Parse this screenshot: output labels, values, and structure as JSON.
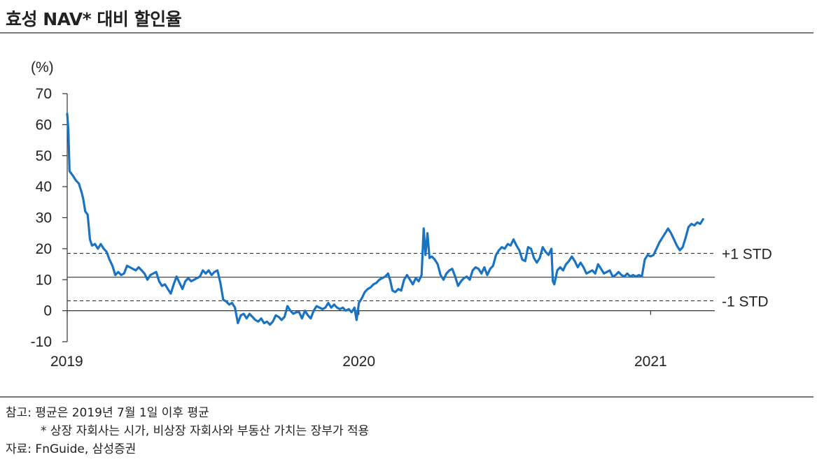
{
  "title": "효성 NAV* 대비 할인율",
  "chart_data": {
    "type": "line",
    "unit_label": "(%)",
    "ylim": [
      -10,
      70
    ],
    "y_ticks": [
      70,
      60,
      50,
      40,
      30,
      20,
      10,
      0,
      -10
    ],
    "x_tick_labels": [
      "2019",
      "2020",
      "2021"
    ],
    "x_ticks": [
      2019.0,
      2020.0,
      2021.0
    ],
    "xlim": [
      2019.0,
      2021.22
    ],
    "reference_lines": [
      {
        "label": "+1 STD",
        "value": 18.5,
        "style": "dashed"
      },
      {
        "label": "",
        "value": 10.8,
        "style": "solid"
      },
      {
        "label": "-1 STD",
        "value": 3.2,
        "style": "dashed"
      }
    ],
    "series": [
      {
        "color": "#1a73c2",
        "points": [
          [
            2019.0,
            63.5
          ],
          [
            2019.004,
            58.0
          ],
          [
            2019.008,
            45.0
          ],
          [
            2019.02,
            43.5
          ],
          [
            2019.03,
            42.0
          ],
          [
            2019.04,
            41.0
          ],
          [
            2019.05,
            38.0
          ],
          [
            2019.055,
            36.0
          ],
          [
            2019.062,
            32.0
          ],
          [
            2019.07,
            31.0
          ],
          [
            2019.078,
            23.0
          ],
          [
            2019.085,
            21.0
          ],
          [
            2019.095,
            21.5
          ],
          [
            2019.105,
            20.0
          ],
          [
            2019.115,
            21.5
          ],
          [
            2019.125,
            20.0
          ],
          [
            2019.135,
            19.0
          ],
          [
            2019.145,
            16.5
          ],
          [
            2019.155,
            14.5
          ],
          [
            2019.165,
            11.5
          ],
          [
            2019.175,
            12.5
          ],
          [
            2019.185,
            11.5
          ],
          [
            2019.195,
            12.0
          ],
          [
            2019.205,
            14.5
          ],
          [
            2019.215,
            14.0
          ],
          [
            2019.225,
            13.5
          ],
          [
            2019.235,
            13.0
          ],
          [
            2019.245,
            14.0
          ],
          [
            2019.255,
            13.0
          ],
          [
            2019.265,
            12.0
          ],
          [
            2019.275,
            10.0
          ],
          [
            2019.285,
            11.5
          ],
          [
            2019.295,
            12.0
          ],
          [
            2019.305,
            12.5
          ],
          [
            2019.315,
            9.5
          ],
          [
            2019.325,
            8.0
          ],
          [
            2019.335,
            8.5
          ],
          [
            2019.345,
            7.0
          ],
          [
            2019.355,
            5.5
          ],
          [
            2019.365,
            8.5
          ],
          [
            2019.375,
            11.0
          ],
          [
            2019.385,
            9.0
          ],
          [
            2019.395,
            7.0
          ],
          [
            2019.405,
            9.5
          ],
          [
            2019.415,
            10.5
          ],
          [
            2019.425,
            9.5
          ],
          [
            2019.435,
            10.0
          ],
          [
            2019.445,
            10.5
          ],
          [
            2019.455,
            11.0
          ],
          [
            2019.465,
            13.0
          ],
          [
            2019.475,
            12.0
          ],
          [
            2019.485,
            13.0
          ],
          [
            2019.495,
            11.5
          ],
          [
            2019.505,
            12.5
          ],
          [
            2019.515,
            13.0
          ],
          [
            2019.525,
            9.0
          ],
          [
            2019.535,
            3.5
          ],
          [
            2019.545,
            3.0
          ],
          [
            2019.555,
            2.0
          ],
          [
            2019.565,
            2.5
          ],
          [
            2019.575,
            1.0
          ],
          [
            2019.585,
            -4.0
          ],
          [
            2019.595,
            -1.5
          ],
          [
            2019.605,
            -1.0
          ],
          [
            2019.615,
            -2.5
          ],
          [
            2019.625,
            -1.0
          ],
          [
            2019.635,
            -2.0
          ],
          [
            2019.645,
            -3.0
          ],
          [
            2019.655,
            -3.5
          ],
          [
            2019.665,
            -2.5
          ],
          [
            2019.675,
            -4.0
          ],
          [
            2019.685,
            -3.5
          ],
          [
            2019.695,
            -4.5
          ],
          [
            2019.705,
            -3.5
          ],
          [
            2019.715,
            -1.5
          ],
          [
            2019.725,
            -2.0
          ],
          [
            2019.735,
            -3.0
          ],
          [
            2019.745,
            -2.0
          ],
          [
            2019.755,
            1.5
          ],
          [
            2019.765,
            0.0
          ],
          [
            2019.775,
            -1.0
          ],
          [
            2019.785,
            -0.5
          ],
          [
            2019.795,
            -0.5
          ],
          [
            2019.805,
            -2.5
          ],
          [
            2019.815,
            0.0
          ],
          [
            2019.825,
            -1.5
          ],
          [
            2019.835,
            -2.5
          ],
          [
            2019.845,
            0.0
          ],
          [
            2019.855,
            1.5
          ],
          [
            2019.865,
            1.0
          ],
          [
            2019.875,
            0.5
          ],
          [
            2019.885,
            1.0
          ],
          [
            2019.895,
            2.5
          ],
          [
            2019.905,
            1.0
          ],
          [
            2019.915,
            2.0
          ],
          [
            2019.925,
            1.0
          ],
          [
            2019.935,
            0.5
          ],
          [
            2019.945,
            1.0
          ],
          [
            2019.955,
            0.0
          ],
          [
            2019.965,
            0.5
          ],
          [
            2019.975,
            -0.5
          ],
          [
            2019.985,
            1.0
          ],
          [
            2019.992,
            -3.0
          ],
          [
            2020.0,
            2.5
          ],
          [
            2020.01,
            4.0
          ],
          [
            2020.02,
            6.0
          ],
          [
            2020.03,
            7.0
          ],
          [
            2020.04,
            7.5
          ],
          [
            2020.05,
            8.5
          ],
          [
            2020.06,
            9.0
          ],
          [
            2020.07,
            10.0
          ],
          [
            2020.08,
            10.5
          ],
          [
            2020.09,
            11.0
          ],
          [
            2020.1,
            12.0
          ],
          [
            2020.108,
            9.5
          ],
          [
            2020.115,
            6.5
          ],
          [
            2020.125,
            6.0
          ],
          [
            2020.135,
            7.0
          ],
          [
            2020.145,
            6.5
          ],
          [
            2020.155,
            10.0
          ],
          [
            2020.165,
            11.5
          ],
          [
            2020.175,
            10.0
          ],
          [
            2020.185,
            8.5
          ],
          [
            2020.195,
            10.5
          ],
          [
            2020.205,
            9.5
          ],
          [
            2020.215,
            11.5
          ],
          [
            2020.222,
            26.5
          ],
          [
            2020.228,
            18.0
          ],
          [
            2020.235,
            25.0
          ],
          [
            2020.242,
            17.0
          ],
          [
            2020.25,
            17.5
          ],
          [
            2020.26,
            16.5
          ],
          [
            2020.27,
            15.0
          ],
          [
            2020.28,
            11.5
          ],
          [
            2020.29,
            10.0
          ],
          [
            2020.3,
            12.0
          ],
          [
            2020.31,
            13.0
          ],
          [
            2020.32,
            13.5
          ],
          [
            2020.33,
            11.0
          ],
          [
            2020.34,
            8.0
          ],
          [
            2020.35,
            9.5
          ],
          [
            2020.36,
            10.5
          ],
          [
            2020.37,
            11.0
          ],
          [
            2020.38,
            10.0
          ],
          [
            2020.39,
            13.0
          ],
          [
            2020.4,
            14.0
          ],
          [
            2020.41,
            13.5
          ],
          [
            2020.42,
            12.0
          ],
          [
            2020.43,
            14.0
          ],
          [
            2020.44,
            11.5
          ],
          [
            2020.45,
            13.5
          ],
          [
            2020.46,
            14.5
          ],
          [
            2020.47,
            18.0
          ],
          [
            2020.48,
            19.5
          ],
          [
            2020.49,
            20.5
          ],
          [
            2020.5,
            20.0
          ],
          [
            2020.51,
            21.5
          ],
          [
            2020.52,
            21.0
          ],
          [
            2020.53,
            23.0
          ],
          [
            2020.54,
            21.0
          ],
          [
            2020.55,
            19.5
          ],
          [
            2020.56,
            16.5
          ],
          [
            2020.57,
            16.0
          ],
          [
            2020.58,
            20.5
          ],
          [
            2020.59,
            20.0
          ],
          [
            2020.6,
            17.0
          ],
          [
            2020.61,
            15.5
          ],
          [
            2020.62,
            17.0
          ],
          [
            2020.63,
            20.5
          ],
          [
            2020.64,
            19.0
          ],
          [
            2020.65,
            18.0
          ],
          [
            2020.66,
            20.0
          ],
          [
            2020.665,
            9.5
          ],
          [
            2020.67,
            8.5
          ],
          [
            2020.68,
            13.0
          ],
          [
            2020.69,
            14.0
          ],
          [
            2020.7,
            13.0
          ],
          [
            2020.71,
            15.0
          ],
          [
            2020.72,
            16.0
          ],
          [
            2020.73,
            17.5
          ],
          [
            2020.74,
            16.0
          ],
          [
            2020.75,
            14.0
          ],
          [
            2020.76,
            15.5
          ],
          [
            2020.77,
            14.0
          ],
          [
            2020.78,
            12.0
          ],
          [
            2020.79,
            12.5
          ],
          [
            2020.8,
            13.0
          ],
          [
            2020.81,
            12.0
          ],
          [
            2020.82,
            15.0
          ],
          [
            2020.83,
            13.5
          ],
          [
            2020.84,
            12.0
          ],
          [
            2020.85,
            12.5
          ],
          [
            2020.86,
            13.0
          ],
          [
            2020.87,
            11.0
          ],
          [
            2020.88,
            11.5
          ],
          [
            2020.89,
            12.5
          ],
          [
            2020.9,
            11.5
          ],
          [
            2020.91,
            11.0
          ],
          [
            2020.92,
            12.0
          ],
          [
            2020.93,
            11.0
          ],
          [
            2020.94,
            11.5
          ],
          [
            2020.95,
            11.0
          ],
          [
            2020.96,
            11.5
          ],
          [
            2020.97,
            11.0
          ],
          [
            2020.98,
            16.5
          ],
          [
            2020.99,
            18.0
          ],
          [
            2021.0,
            17.5
          ],
          [
            2021.01,
            18.0
          ],
          [
            2021.02,
            20.0
          ],
          [
            2021.03,
            22.0
          ],
          [
            2021.04,
            23.5
          ],
          [
            2021.05,
            25.0
          ],
          [
            2021.06,
            26.5
          ],
          [
            2021.07,
            25.0
          ],
          [
            2021.08,
            23.0
          ],
          [
            2021.09,
            21.0
          ],
          [
            2021.1,
            19.5
          ],
          [
            2021.11,
            20.5
          ],
          [
            2021.12,
            23.5
          ],
          [
            2021.13,
            27.0
          ],
          [
            2021.14,
            28.0
          ],
          [
            2021.15,
            27.5
          ],
          [
            2021.16,
            28.5
          ],
          [
            2021.17,
            28.0
          ],
          [
            2021.18,
            29.5
          ]
        ]
      }
    ]
  },
  "notes": {
    "line1": "참고: 평균은 2019년 7월 1일 이후 평균",
    "line2": "* 상장 자회사는 시가, 비상장 자회사와 부동산 가치는 장부가 적용",
    "line3": "자료: FnGuide, 삼성증권"
  }
}
